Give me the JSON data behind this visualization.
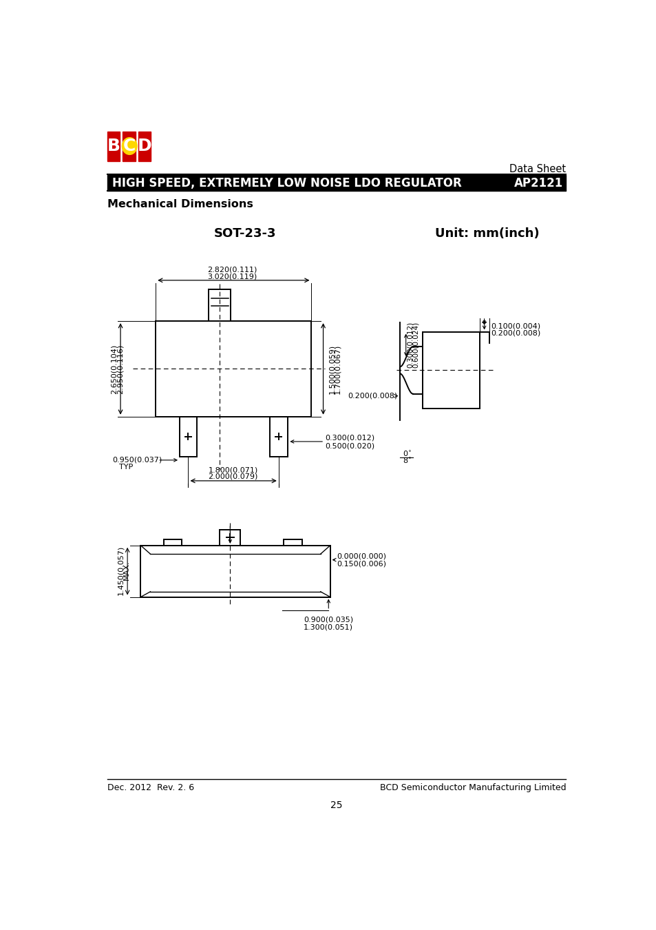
{
  "page_title": "HIGH SPEED, EXTREMELY LOW NOISE LDO REGULATOR",
  "page_title_right": "AP2121",
  "data_sheet_text": "Data Sheet",
  "mechanical_title": "Mechanical Dimensions",
  "sot_label": "SOT-23-3",
  "unit_label": "Unit: mm(inch)",
  "footer_left": "Dec. 2012  Rev. 2. 6",
  "footer_right": "BCD Semiconductor Manufacturing Limited",
  "page_number": "25",
  "bg_color": "#ffffff",
  "header_bar_color": "#000000",
  "header_text_color": "#ffffff"
}
